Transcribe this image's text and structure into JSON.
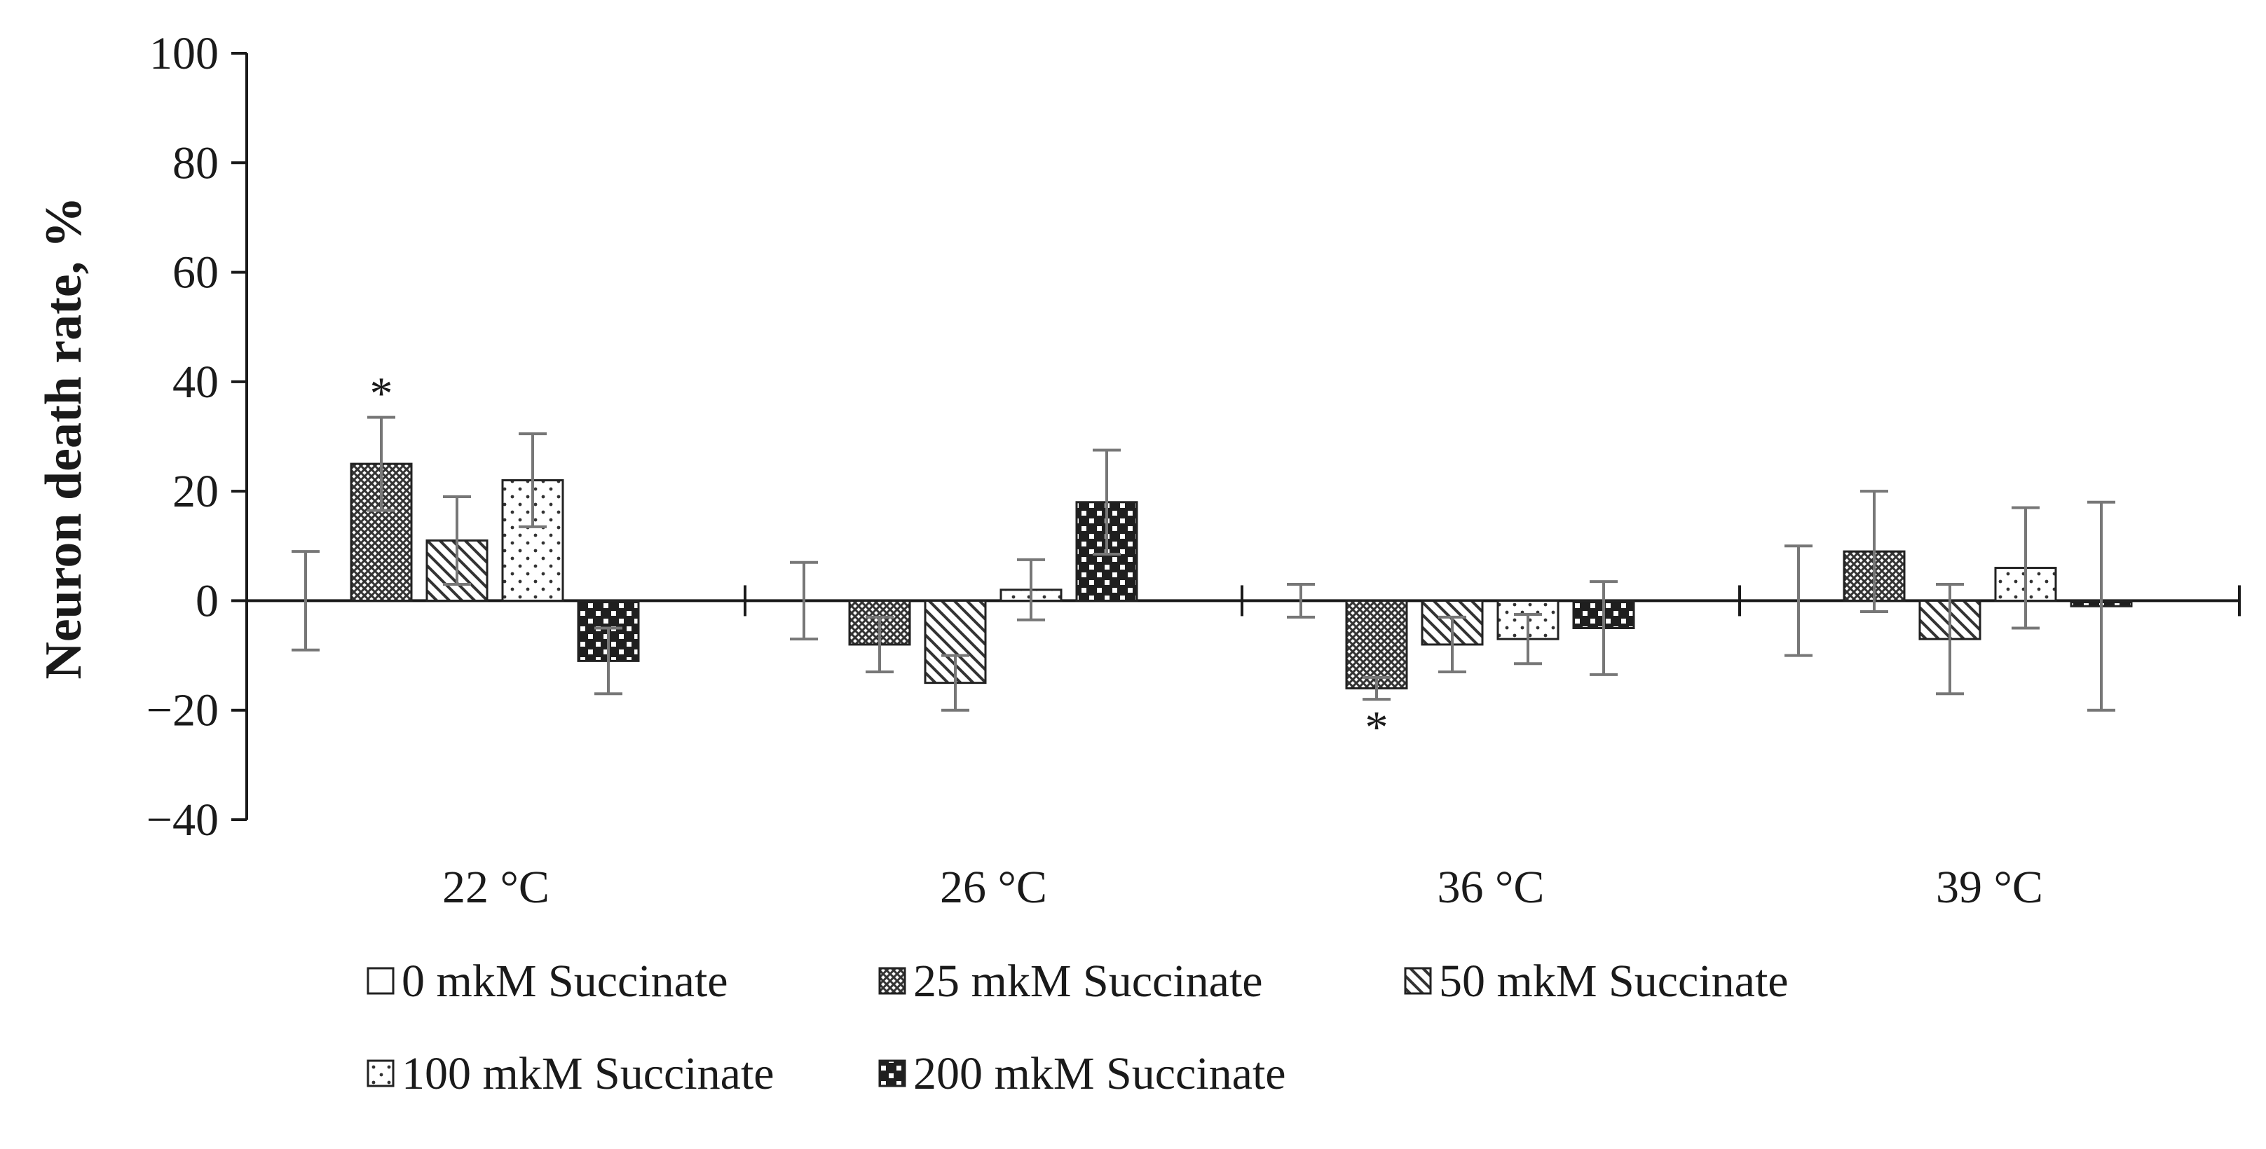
{
  "chart_data": {
    "type": "bar",
    "title": "",
    "xlabel": "",
    "ylabel": "Neuron death  rate, %",
    "ylim": [
      -40,
      100
    ],
    "yticks": [
      "100",
      "80",
      "60",
      "40",
      "20",
      "0",
      "−20",
      "−40"
    ],
    "ytick_values": [
      100,
      80,
      60,
      40,
      20,
      0,
      -20,
      -40
    ],
    "categories": [
      "22 °C",
      "26 °C",
      "36 °C",
      "39 °C"
    ],
    "series": [
      {
        "name": "0 mkM Succinate",
        "pattern": "none",
        "values": [
          0,
          0,
          0,
          0
        ],
        "errors": [
          9,
          7,
          3,
          10
        ]
      },
      {
        "name": "25 mkM Succinate",
        "pattern": "dense-cross",
        "values": [
          25,
          -8,
          -16,
          9
        ],
        "errors": [
          8.5,
          5,
          2,
          11
        ]
      },
      {
        "name": "50 mkM Succinate",
        "pattern": "diagonal",
        "values": [
          11,
          -15,
          -8,
          -7
        ],
        "errors": [
          8,
          5,
          5,
          10
        ]
      },
      {
        "name": "100 mkM Succinate",
        "pattern": "dots",
        "values": [
          22,
          2,
          -7,
          6
        ],
        "errors": [
          8.5,
          5.5,
          4.5,
          11
        ]
      },
      {
        "name": "200 mkM Succinate",
        "pattern": "checker",
        "values": [
          -11,
          18,
          -5,
          -1
        ],
        "errors": [
          6,
          9.5,
          8.5,
          19
        ]
      }
    ],
    "annotations": [
      {
        "text": "*",
        "category": "22 °C",
        "series": "25 mkM Succinate"
      },
      {
        "text": "*",
        "category": "36 °C",
        "series": "25 mkM Succinate"
      }
    ],
    "grid": false,
    "legend_position": "bottom"
  },
  "colors": {
    "axis": "#1a1a1a",
    "bar_stroke": "#222222",
    "error_bar": "#777777",
    "pattern_ink": "#333333"
  }
}
